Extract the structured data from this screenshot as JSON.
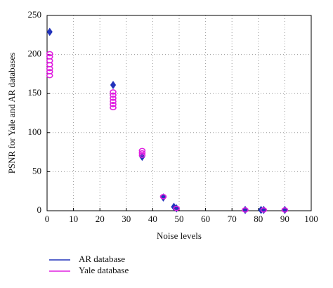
{
  "chart_data": {
    "type": "scatter",
    "xlabel": "Noise levels",
    "ylabel": "PSNR for Yale and AR databases",
    "xlim": [
      0,
      100
    ],
    "ylim": [
      0,
      250
    ],
    "xticks": [
      0,
      10,
      20,
      30,
      40,
      50,
      60,
      70,
      80,
      90,
      100
    ],
    "yticks": [
      0,
      50,
      100,
      150,
      200,
      250
    ],
    "grid": true,
    "series": [
      {
        "name": "AR database",
        "color": "#2233bb",
        "marker": "diamond",
        "x": [
          1,
          25,
          36,
          44,
          48,
          49,
          75,
          81,
          82,
          90
        ],
        "values": [
          229,
          161,
          69,
          17,
          5,
          3,
          1,
          1,
          1,
          1
        ]
      },
      {
        "name": "Yale database",
        "color": "#e020e0",
        "marker": "circle",
        "x": [
          1,
          1,
          1,
          1,
          1,
          1,
          1,
          25,
          25,
          25,
          25,
          25,
          25,
          36,
          36,
          36,
          44,
          49,
          75,
          82,
          90
        ],
        "values": [
          201,
          197,
          192,
          187,
          182,
          178,
          173,
          152,
          148,
          144,
          140,
          136,
          132,
          77,
          74,
          71,
          18,
          3,
          1,
          1,
          1
        ]
      }
    ]
  }
}
